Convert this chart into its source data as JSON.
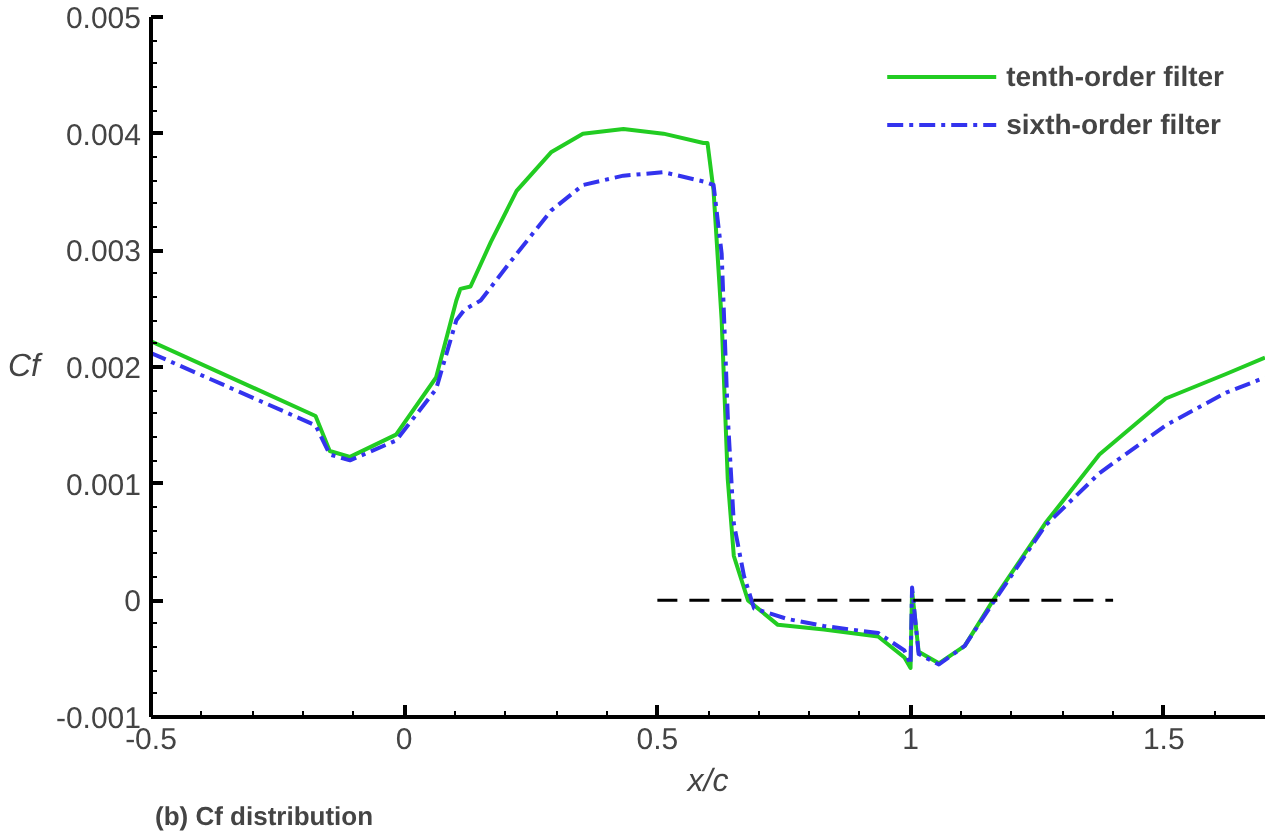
{
  "chart_data": {
    "type": "line",
    "xlabel": "x/c",
    "ylabel": "Cf",
    "annotations": [
      "(b) Cf distribution"
    ],
    "xlim": [
      -0.5,
      1.7
    ],
    "ylim": [
      -0.001,
      0.005
    ],
    "xticks": [
      -0.5,
      0,
      0.5,
      1,
      1.5
    ],
    "yticks": [
      -0.001,
      0,
      0.001,
      0.002,
      0.003,
      0.004,
      0.005
    ],
    "legend": "top right",
    "grid": false,
    "series": [
      {
        "name": "tenth-order filter",
        "color": "#22cc22",
        "line_style": "solid",
        "x": [
          -0.5,
          -0.175,
          -0.147,
          -0.107,
          -0.016,
          0.063,
          0.103,
          0.111,
          0.131,
          0.171,
          0.222,
          0.29,
          0.353,
          0.433,
          0.512,
          0.591,
          0.599,
          0.611,
          0.627,
          0.639,
          0.651,
          0.679,
          0.738,
          0.829,
          0.936,
          0.988,
          1.0,
          1.003,
          1.016,
          1.056,
          1.107,
          1.163,
          1.266,
          1.373,
          1.504,
          1.623,
          1.7
        ],
        "values": [
          0.00222,
          0.00158,
          0.00128,
          0.00123,
          0.00142,
          0.00191,
          0.00257,
          0.00267,
          0.00269,
          0.00307,
          0.00351,
          0.00384,
          0.004,
          0.00404,
          0.004,
          0.00392,
          0.00392,
          0.00351,
          0.0024,
          0.00104,
          0.00038,
          0,
          -0.00021,
          -0.00025,
          -0.00031,
          -0.00049,
          -0.00058,
          8e-05,
          -0.00044,
          -0.00054,
          -0.00039,
          0,
          0.00066,
          0.00125,
          0.00173,
          0.00194,
          0.00208
        ]
      },
      {
        "name": "sixth-order filter",
        "color": "#3333ee",
        "line_style": "dashdot",
        "x": [
          -0.5,
          -0.175,
          -0.147,
          -0.107,
          -0.016,
          0.063,
          0.103,
          0.119,
          0.151,
          0.222,
          0.29,
          0.353,
          0.433,
          0.512,
          0.591,
          0.611,
          0.627,
          0.639,
          0.651,
          0.671,
          0.691,
          0.757,
          0.829,
          0.936,
          0.988,
          1.0,
          1.003,
          1.016,
          1.056,
          1.107,
          1.163,
          1.266,
          1.373,
          1.504,
          1.623,
          1.7
        ],
        "values": [
          0.00212,
          0.0015,
          0.00125,
          0.0012,
          0.00137,
          0.00181,
          0.0024,
          0.00249,
          0.00257,
          0.00297,
          0.00334,
          0.00356,
          0.00364,
          0.00367,
          0.00359,
          0.00356,
          0.00297,
          0.00158,
          0.00066,
          0.00021,
          -7e-05,
          -0.00016,
          -0.00022,
          -0.00028,
          -0.00043,
          -0.00055,
          0.00011,
          -0.00046,
          -0.00055,
          -0.00039,
          -2e-05,
          0.00064,
          0.00109,
          0.0015,
          0.00178,
          0.00191
        ]
      },
      {
        "color": "#000000",
        "line_style": "dashed",
        "x": [
          0.5,
          1.4
        ],
        "values": [
          0,
          0
        ]
      }
    ]
  }
}
